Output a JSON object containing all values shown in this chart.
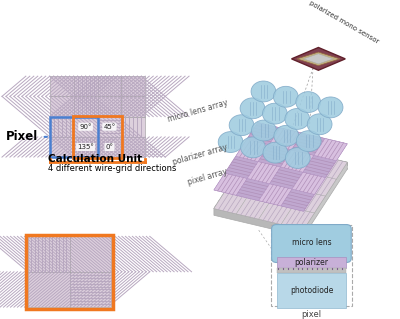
{
  "bg_color": "#ffffff",
  "pixel_label": "Pixel",
  "calc_unit_label": "Calculation Unit",
  "calc_unit_sub": "4 different wire-grid directions",
  "pixel_label2": "pixel",
  "sensor_label": "polarized mono sensor",
  "right_labels": [
    "micro lens array",
    "polarizer array",
    "pixel array"
  ],
  "micro_lens_label": "micro lens",
  "polarizer_label": "polarizer",
  "photodiode_label": "photodiode",
  "orange_color": "#f07820",
  "blue_color": "#4a7fd0",
  "hatch_line_color": "#b8a8c0",
  "hatch_bg": "#ddd0dd",
  "lens_color": "#a0cce0",
  "lens_edge": "#80aac8",
  "pol_color": "#c8b0d8",
  "pol_edge": "#a890c0",
  "photo_color": "#b8d8e8",
  "photo_edge": "#90b8d0",
  "grid_outer": "#999999",
  "iso_border": "#aaaaaa",
  "sensor_body": "#804050",
  "sensor_inner": "#c0b080",
  "sensor_center": "#c8c8c8"
}
